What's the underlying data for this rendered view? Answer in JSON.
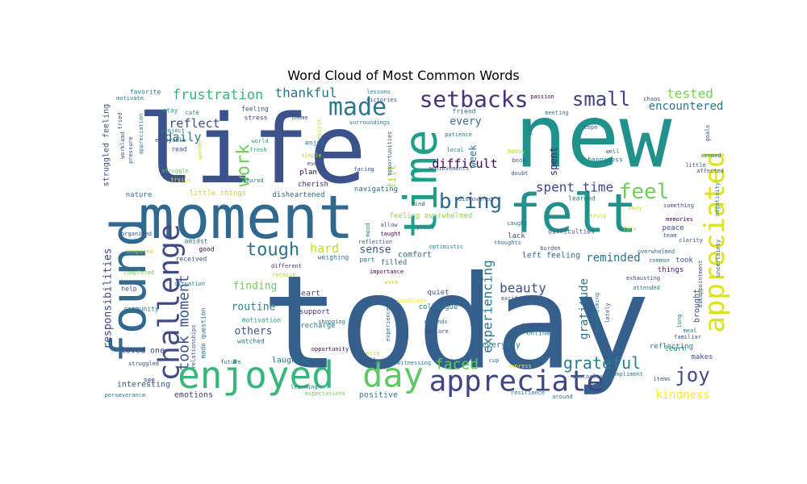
{
  "chart_data": {
    "type": "wordcloud",
    "title": "Word Cloud of Most Common Words",
    "colormap": "viridis",
    "words": [
      {
        "text": "today",
        "weight": 160,
        "color": "#355f8d"
      },
      {
        "text": "life",
        "weight": 118,
        "color": "#3b528b"
      },
      {
        "text": "new",
        "weight": 108,
        "color": "#21918c"
      },
      {
        "text": "moment",
        "weight": 74,
        "color": "#31688e"
      },
      {
        "text": "felt",
        "weight": 66,
        "color": "#21918c"
      },
      {
        "text": "found",
        "weight": 60,
        "color": "#31688e"
      },
      {
        "text": "time",
        "weight": 56,
        "color": "#1f9e89"
      },
      {
        "text": "enjoyed",
        "weight": 46,
        "color": "#35b779"
      },
      {
        "text": "day",
        "weight": 42,
        "color": "#5ec962"
      },
      {
        "text": "appreciate",
        "weight": 36,
        "color": "#414487"
      },
      {
        "text": "challenge",
        "weight": 36,
        "color": "#3e4a89"
      },
      {
        "text": "appreciated",
        "weight": 34,
        "color": "#dde318"
      },
      {
        "text": "made",
        "weight": 30,
        "color": "#2a788e"
      },
      {
        "text": "setbacks",
        "weight": 28,
        "color": "#46327e"
      },
      {
        "text": "bring",
        "weight": 26,
        "color": "#31688e"
      },
      {
        "text": "feel",
        "weight": 26,
        "color": "#6ece58"
      },
      {
        "text": "small",
        "weight": 24,
        "color": "#433e85"
      },
      {
        "text": "joy",
        "weight": 24,
        "color": "#3e4a89"
      },
      {
        "text": "work",
        "weight": 22,
        "color": "#6ece58"
      },
      {
        "text": "tough",
        "weight": 22,
        "color": "#2c728e"
      },
      {
        "text": "grateful",
        "weight": 20,
        "color": "#26828e"
      },
      {
        "text": "faced",
        "weight": 18,
        "color": "#5ec962"
      },
      {
        "text": "took moment",
        "weight": 18,
        "color": "#3b528b"
      },
      {
        "text": "frustration",
        "weight": 17,
        "color": "#35b779"
      },
      {
        "text": "experiencing",
        "weight": 16,
        "color": "#2a788e"
      },
      {
        "text": "thankful",
        "weight": 16,
        "color": "#2c728e"
      },
      {
        "text": "beauty",
        "weight": 16,
        "color": "#3b528b"
      },
      {
        "text": "spent time",
        "weight": 16,
        "color": "#404688"
      },
      {
        "text": "tested",
        "weight": 16,
        "color": "#7ad151"
      },
      {
        "text": "reflect",
        "weight": 15,
        "color": "#3e4a89"
      },
      {
        "text": "difficult",
        "weight": 15,
        "color": "#440154"
      },
      {
        "text": "daily",
        "weight": 15,
        "color": "#2a788e"
      },
      {
        "text": "hard",
        "weight": 15,
        "color": "#bddf26"
      },
      {
        "text": "encountered",
        "weight": 14,
        "color": "#2a788e"
      },
      {
        "text": "reminded",
        "weight": 14,
        "color": "#2c728e"
      },
      {
        "text": "kindness",
        "weight": 14,
        "color": "#fde725"
      },
      {
        "text": "gratitude",
        "weight": 14,
        "color": "#2d708e"
      },
      {
        "text": "responsibilities",
        "weight": 13,
        "color": "#3e4a89"
      },
      {
        "text": "finding",
        "weight": 13,
        "color": "#6ece58"
      },
      {
        "text": "routine",
        "weight": 13,
        "color": "#26828e"
      },
      {
        "text": "others",
        "weight": 13,
        "color": "#39568c"
      },
      {
        "text": "every",
        "weight": 13,
        "color": "#31688e"
      },
      {
        "text": "sense",
        "weight": 13,
        "color": "#3b528b"
      },
      {
        "text": "week",
        "weight": 12,
        "color": "#2a788e"
      },
      {
        "text": "spent",
        "weight": 12,
        "color": "#481f70"
      },
      {
        "text": "fill",
        "weight": 12,
        "color": "#a5db36"
      },
      {
        "text": "struggled feeling",
        "weight": 10,
        "color": "#3b528b"
      },
      {
        "text": "left feeling",
        "weight": 10,
        "color": "#2d708e"
      },
      {
        "text": "brought",
        "weight": 10,
        "color": "#3b528b"
      },
      {
        "text": "comfort",
        "weight": 10,
        "color": "#31688e"
      },
      {
        "text": "heart",
        "weight": 10,
        "color": "#3b528b"
      },
      {
        "text": "loved one",
        "weight": 10,
        "color": "#414487"
      },
      {
        "text": "interesting",
        "weight": 10,
        "color": "#3b528b"
      },
      {
        "text": "emotions",
        "weight": 10,
        "color": "#46327e"
      },
      {
        "text": "positive",
        "weight": 10,
        "color": "#2a788e"
      },
      {
        "text": "laughter",
        "weight": 10,
        "color": "#2c728e"
      },
      {
        "text": "everyday",
        "weight": 10,
        "color": "#2a788e"
      },
      {
        "text": "nature",
        "weight": 9,
        "color": "#2c728e"
      },
      {
        "text": "little things",
        "weight": 9,
        "color": "#b5de2b"
      },
      {
        "text": "disheartened",
        "weight": 9,
        "color": "#31688e"
      },
      {
        "text": "cherish",
        "weight": 9,
        "color": "#472d7b"
      },
      {
        "text": "plan",
        "weight": 9,
        "color": "#440154"
      },
      {
        "text": "navigating",
        "weight": 9,
        "color": "#31688e"
      },
      {
        "text": "feeling overwhelmed",
        "weight": 9,
        "color": "#90d743"
      },
      {
        "text": "lack",
        "weight": 9,
        "color": "#3b528b"
      },
      {
        "text": "filled",
        "weight": 9,
        "color": "#2a788e"
      },
      {
        "text": "support",
        "weight": 9,
        "color": "#46327e"
      },
      {
        "text": "recharge",
        "weight": 9,
        "color": "#26828e"
      },
      {
        "text": "colleague",
        "weight": 9,
        "color": "#2a788e"
      },
      {
        "text": "quiet",
        "weight": 9,
        "color": "#3b528b"
      },
      {
        "text": "reflecting",
        "weight": 9,
        "color": "#2a788e"
      },
      {
        "text": "learn",
        "weight": 9,
        "color": "#1f9e89"
      },
      {
        "text": "makes",
        "weight": 9,
        "color": "#3b528b"
      },
      {
        "text": "things",
        "weight": 9,
        "color": "#482878"
      },
      {
        "text": "peace",
        "weight": 9,
        "color": "#3b528b"
      },
      {
        "text": "took",
        "weight": 9,
        "color": "#3b528b"
      },
      {
        "text": "happiness",
        "weight": 8,
        "color": "#2a788e"
      },
      {
        "text": "difficulties",
        "weight": 8,
        "color": "#3b528b"
      },
      {
        "text": "learned",
        "weight": 8,
        "color": "#2a788e"
      },
      {
        "text": "community",
        "weight": 8,
        "color": "#2c728e"
      },
      {
        "text": "help",
        "weight": 8,
        "color": "#3b528b"
      },
      {
        "text": "favorite",
        "weight": 8,
        "color": "#26828e"
      },
      {
        "text": "stay",
        "weight": 8,
        "color": "#1f9e89"
      },
      {
        "text": "feeling",
        "weight": 8,
        "color": "#3b528b"
      },
      {
        "text": "stress",
        "weight": 8,
        "color": "#414487"
      },
      {
        "text": "read",
        "weight": 8,
        "color": "#3b528b"
      },
      {
        "text": "enjoy",
        "weight": 8,
        "color": "#2a788e"
      },
      {
        "text": "friend",
        "weight": 8,
        "color": "#31688e"
      },
      {
        "text": "online",
        "weight": 8,
        "color": "#2a788e"
      },
      {
        "text": "received",
        "weight": 8,
        "color": "#3b528b"
      },
      {
        "text": "watched",
        "weight": 8,
        "color": "#2a788e"
      },
      {
        "text": "motivation",
        "weight": 8,
        "color": "#1f9e89"
      },
      {
        "text": "made question",
        "weight": 8,
        "color": "#2c728e"
      },
      {
        "text": "part",
        "weight": 8,
        "color": "#2c728e"
      },
      {
        "text": "amidst",
        "weight": 8,
        "color": "#2c728e"
      },
      {
        "text": "good",
        "weight": 8,
        "color": "#440154"
      },
      {
        "text": "see",
        "weight": 8,
        "color": "#414487"
      },
      {
        "text": "organized",
        "weight": 7,
        "color": "#3b528b"
      },
      {
        "text": "inspired",
        "weight": 7,
        "color": "#b5de2b"
      },
      {
        "text": "completed",
        "weight": 7,
        "color": "#6ece58"
      },
      {
        "text": "different",
        "weight": 7,
        "color": "#46327e"
      },
      {
        "text": "receive",
        "weight": 7,
        "color": "#b5de2b"
      },
      {
        "text": "situation",
        "weight": 7,
        "color": "#26828e"
      },
      {
        "text": "experience",
        "weight": 7,
        "color": "#2a788e"
      },
      {
        "text": "opportunity",
        "weight": 7,
        "color": "#440154"
      },
      {
        "text": "shopping",
        "weight": 7,
        "color": "#2c728e"
      },
      {
        "text": "reminds",
        "weight": 7,
        "color": "#2a788e"
      },
      {
        "text": "explore",
        "weight": 7,
        "color": "#3b528b"
      },
      {
        "text": "impacted",
        "weight": 7,
        "color": "#3b528b"
      },
      {
        "text": "overwhelming",
        "weight": 7,
        "color": "#2a788e"
      },
      {
        "text": "lately",
        "weight": 7,
        "color": "#3b528b"
      },
      {
        "text": "obstacles",
        "weight": 7,
        "color": "#31688e"
      },
      {
        "text": "compliment",
        "weight": 7,
        "color": "#2a788e"
      },
      {
        "text": "items",
        "weight": 7,
        "color": "#3b528b"
      },
      {
        "text": "around",
        "weight": 7,
        "color": "#2c728e"
      },
      {
        "text": "resilience",
        "weight": 7,
        "color": "#2a788e"
      },
      {
        "text": "expectations",
        "weight": 7,
        "color": "#6ece58"
      },
      {
        "text": "perseverance",
        "weight": 7,
        "color": "#2a788e"
      },
      {
        "text": "struggled",
        "weight": 7,
        "color": "#3b528b"
      },
      {
        "text": "future",
        "weight": 7,
        "color": "#31688e"
      },
      {
        "text": "nice",
        "weight": 7,
        "color": "#bddf26"
      },
      {
        "text": "family",
        "weight": 7,
        "color": "#3b528b"
      },
      {
        "text": "cup",
        "weight": 7,
        "color": "#2a788e"
      },
      {
        "text": "witnessing",
        "weight": 7,
        "color": "#2a788e"
      },
      {
        "text": "warm",
        "weight": 7,
        "color": "#bddf26"
      },
      {
        "text": "importance",
        "weight": 7,
        "color": "#440154"
      },
      {
        "text": "sometimes",
        "weight": 7,
        "color": "#fde725"
      },
      {
        "text": "excitement",
        "weight": 7,
        "color": "#3b528b"
      },
      {
        "text": "optimistic",
        "weight": 7,
        "color": "#2a788e"
      },
      {
        "text": "thoughts",
        "weight": 7,
        "color": "#2c728e"
      },
      {
        "text": "burden",
        "weight": 7,
        "color": "#3b528b"
      },
      {
        "text": "clarity",
        "weight": 7,
        "color": "#3b528b"
      },
      {
        "text": "team",
        "weight": 7,
        "color": "#3b528b"
      },
      {
        "text": "common",
        "weight": 7,
        "color": "#2a788e"
      },
      {
        "text": "familiar",
        "weight": 7,
        "color": "#3b528b"
      },
      {
        "text": "meal",
        "weight": 7,
        "color": "#2a788e"
      },
      {
        "text": "long",
        "weight": 7,
        "color": "#2a788e"
      },
      {
        "text": "attended",
        "weight": 7,
        "color": "#2a788e"
      },
      {
        "text": "exhausting",
        "weight": 7,
        "color": "#3b528b"
      },
      {
        "text": "overwhelmed",
        "weight": 7,
        "color": "#2c728e"
      },
      {
        "text": "memories",
        "weight": 7,
        "color": "#440154"
      },
      {
        "text": "something",
        "weight": 7,
        "color": "#3b528b"
      },
      {
        "text": "okay",
        "weight": 7,
        "color": "#bddf26"
      },
      {
        "text": "well",
        "weight": 7,
        "color": "#3b528b"
      },
      {
        "text": "cope",
        "weight": 7,
        "color": "#3b528b"
      },
      {
        "text": "chaos",
        "weight": 7,
        "color": "#3b528b"
      },
      {
        "text": "meeting",
        "weight": 7,
        "color": "#2a788e"
      },
      {
        "text": "passion",
        "weight": 7,
        "color": "#440154"
      },
      {
        "text": "lessons",
        "weight": 7,
        "color": "#2a788e"
      },
      {
        "text": "victories",
        "weight": 7,
        "color": "#3b528b"
      },
      {
        "text": "café",
        "weight": 7,
        "color": "#2a788e"
      },
      {
        "text": "project",
        "weight": 7,
        "color": "#2a788e"
      },
      {
        "text": "enjoyable",
        "weight": 7,
        "color": "#3b528b"
      },
      {
        "text": "struggle",
        "weight": 7,
        "color": "#5ec962"
      },
      {
        "text": "world",
        "weight": 7,
        "color": "#1f9e89"
      },
      {
        "text": "fresh",
        "weight": 7,
        "color": "#1f9e89"
      },
      {
        "text": "theme",
        "weight": 7,
        "color": "#3b528b"
      },
      {
        "text": "surroundings",
        "weight": 7,
        "color": "#2a788e"
      },
      {
        "text": "simple",
        "weight": 7,
        "color": "#b5de2b"
      },
      {
        "text": "even",
        "weight": 7,
        "color": "#3b528b"
      },
      {
        "text": "shared",
        "weight": 7,
        "color": "#2a788e"
      },
      {
        "text": "trying",
        "weight": 7,
        "color": "#fde725"
      },
      {
        "text": "facing",
        "weight": 7,
        "color": "#3b528b"
      },
      {
        "text": "patience",
        "weight": 7,
        "color": "#2a788e"
      },
      {
        "text": "achievements",
        "weight": 7,
        "color": "#3b528b"
      },
      {
        "text": "local",
        "weight": 7,
        "color": "#2a788e"
      },
      {
        "text": "discovered",
        "weight": 7,
        "color": "#3b528b"
      },
      {
        "text": "find",
        "weight": 7,
        "color": "#3b528b"
      },
      {
        "text": "proud",
        "weight": 7,
        "color": "#2a788e"
      },
      {
        "text": "allow",
        "weight": 7,
        "color": "#3b528b"
      },
      {
        "text": "taught",
        "weight": 7,
        "color": "#440154"
      },
      {
        "text": "hobby",
        "weight": 7,
        "color": "#b5de2b"
      },
      {
        "text": "book",
        "weight": 7,
        "color": "#3b528b"
      },
      {
        "text": "doubt",
        "weight": 7,
        "color": "#3b528b"
      },
      {
        "text": "goals",
        "weight": 7,
        "color": "#3b528b"
      },
      {
        "text": "seemed",
        "weight": 7,
        "color": "#2a788e"
      },
      {
        "text": "little",
        "weight": 7,
        "color": "#3b528b"
      },
      {
        "text": "affected",
        "weight": 7,
        "color": "#3b528b"
      },
      {
        "text": "negativity",
        "weight": 7,
        "color": "#2a788e"
      },
      {
        "text": "disappointment",
        "weight": 7,
        "color": "#3b528b"
      },
      {
        "text": "uncertainty",
        "weight": 7,
        "color": "#3b528b"
      },
      {
        "text": "motivate",
        "weight": 7,
        "color": "#2a788e"
      },
      {
        "text": "tried",
        "weight": 7,
        "color": "#3b528b"
      },
      {
        "text": "workload",
        "weight": 7,
        "color": "#3b528b"
      },
      {
        "text": "pressure",
        "weight": 7,
        "color": "#3b528b"
      },
      {
        "text": "appreciation",
        "weight": 7,
        "color": "#2a788e"
      },
      {
        "text": "wonder",
        "weight": 7,
        "color": "#b5de2b"
      },
      {
        "text": "spirit",
        "weight": 7,
        "color": "#b5de2b"
      },
      {
        "text": "opportunities",
        "weight": 7,
        "color": "#3b528b"
      },
      {
        "text": "mood",
        "weight": 7,
        "color": "#2a788e"
      },
      {
        "text": "reflection",
        "weight": 7,
        "color": "#3b528b"
      },
      {
        "text": "grow",
        "weight": 7,
        "color": "#2a788e"
      },
      {
        "text": "caught",
        "weight": 7,
        "color": "#2a788e"
      },
      {
        "text": "truly",
        "weight": 7,
        "color": "#b5de2b"
      },
      {
        "text": "face",
        "weight": 7,
        "color": "#b5de2b"
      },
      {
        "text": "learning",
        "weight": 7,
        "color": "#2a788e"
      },
      {
        "text": "weighing",
        "weight": 8,
        "color": "#2a788e"
      },
      {
        "text": "relationships",
        "weight": 7,
        "color": "#3b528b"
      },
      {
        "text": "express",
        "weight": 7,
        "color": "#fde725"
      }
    ]
  }
}
